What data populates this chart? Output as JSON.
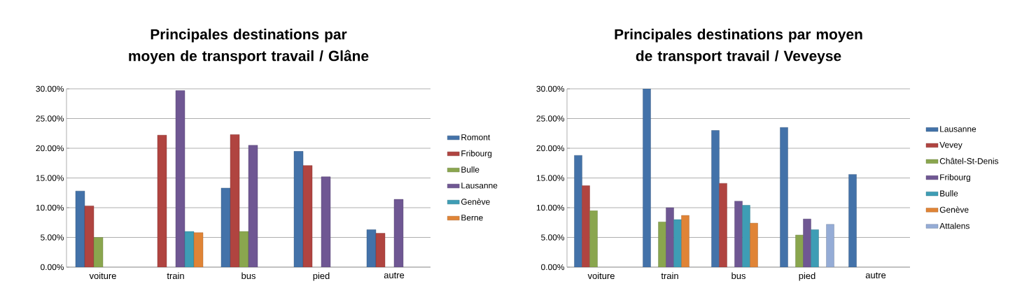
{
  "chart_data": [
    {
      "type": "bar",
      "title": "Principales destinations par moyen de  transport travail / Glâne",
      "categories": [
        "voiture",
        "train",
        "bus",
        "pied",
        "autre"
      ],
      "ylim": [
        0,
        30
      ],
      "yticks": [
        {
          "value": 0,
          "label": "0.00%"
        },
        {
          "value": 5,
          "label": "5.00%"
        },
        {
          "value": 10,
          "label": "10.00%"
        },
        {
          "value": 15,
          "label": "15.00%"
        },
        {
          "value": 20,
          "label": "20.00%"
        },
        {
          "value": 25,
          "label": "25.00%"
        },
        {
          "value": 30,
          "label": "30.00%"
        }
      ],
      "grid": "y",
      "legend": "right",
      "series": [
        {
          "name": "Romont",
          "color": "#4372a9",
          "values": [
            12.8,
            null,
            13.3,
            19.5,
            6.3
          ]
        },
        {
          "name": "Fribourg",
          "color": "#b04440",
          "values": [
            10.3,
            22.2,
            22.3,
            17.1,
            5.7
          ]
        },
        {
          "name": "Bulle",
          "color": "#8aa64e",
          "values": [
            5.0,
            null,
            6.0,
            null,
            null
          ]
        },
        {
          "name": "Lausanne",
          "color": "#6f5793",
          "values": [
            null,
            29.7,
            20.5,
            15.2,
            11.4
          ]
        },
        {
          "name": "Genève",
          "color": "#3e9db5",
          "values": [
            null,
            6.0,
            null,
            null,
            null
          ]
        },
        {
          "name": "Berne",
          "color": "#e08436",
          "values": [
            null,
            5.8,
            null,
            null,
            null
          ]
        }
      ]
    },
    {
      "type": "bar",
      "title": "Principales destinations par moyen de transport travail / Veveyse",
      "categories": [
        "voiture",
        "train",
        "bus",
        "pied",
        "autre"
      ],
      "ylim": [
        0,
        30
      ],
      "yticks": [
        {
          "value": 0,
          "label": "0.00%"
        },
        {
          "value": 5,
          "label": "5.00%"
        },
        {
          "value": 10,
          "label": "10.00%"
        },
        {
          "value": 15,
          "label": "15.00%"
        },
        {
          "value": 20,
          "label": "20.00%"
        },
        {
          "value": 25,
          "label": "25.00%"
        },
        {
          "value": 30,
          "label": "30.00%"
        }
      ],
      "grid": "y",
      "legend": "right",
      "series": [
        {
          "name": "Lausanne",
          "color": "#4372a9",
          "values": [
            18.8,
            30.0,
            23.0,
            23.5,
            15.6
          ]
        },
        {
          "name": "Vevey",
          "color": "#b04440",
          "values": [
            13.7,
            null,
            14.1,
            null,
            null
          ]
        },
        {
          "name": "Châtel-St-Denis",
          "color": "#8aa64e",
          "values": [
            9.5,
            7.6,
            null,
            5.4,
            null
          ]
        },
        {
          "name": "Fribourg",
          "color": "#6f5793",
          "values": [
            null,
            10.0,
            11.1,
            8.1,
            null
          ]
        },
        {
          "name": "Bulle",
          "color": "#3e9db5",
          "values": [
            null,
            8.0,
            10.4,
            6.3,
            null
          ]
        },
        {
          "name": "Genève",
          "color": "#e08436",
          "values": [
            null,
            8.7,
            7.4,
            null,
            null
          ]
        },
        {
          "name": "Attalens",
          "color": "#95acd6",
          "values": [
            null,
            null,
            null,
            7.2,
            null
          ]
        }
      ]
    }
  ]
}
